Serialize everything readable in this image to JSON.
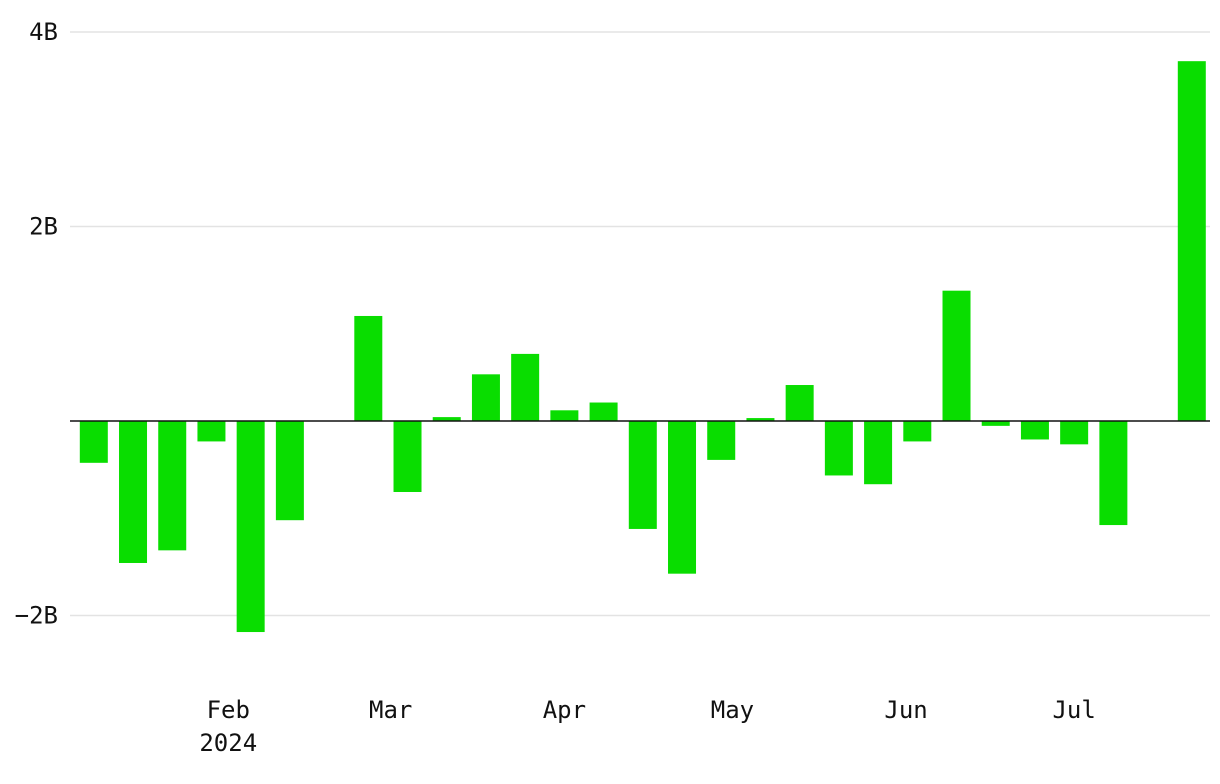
{
  "chart_data": {
    "type": "bar",
    "title": "",
    "xlabel": "",
    "ylabel": "",
    "ylim": [
      -2.6,
      4.1
    ],
    "y_unit": "billions",
    "y_ticks": [
      {
        "value": 4,
        "label": "4B"
      },
      {
        "value": 2,
        "label": "2B"
      },
      {
        "value": -2,
        "label": "−2B"
      }
    ],
    "x_ticks": [
      {
        "label": "Feb",
        "sublabel": "2024",
        "date": "2024-02-01"
      },
      {
        "label": "Mar",
        "sublabel": "",
        "date": "2024-03-01"
      },
      {
        "label": "Apr",
        "sublabel": "",
        "date": "2024-04-01"
      },
      {
        "label": "May",
        "sublabel": "",
        "date": "2024-05-01"
      },
      {
        "label": "Jun",
        "sublabel": "",
        "date": "2024-06-01"
      },
      {
        "label": "Jul",
        "sublabel": "",
        "date": "2024-07-01"
      }
    ],
    "x_range": [
      "2024-01-05",
      "2024-07-24"
    ],
    "bar_color": "#09dd00",
    "grid": true,
    "series": [
      {
        "x": [
          "2024-01-08",
          "2024-01-15",
          "2024-01-22",
          "2024-01-29",
          "2024-02-05",
          "2024-02-12",
          "2024-02-19",
          "2024-02-26",
          "2024-03-04",
          "2024-03-11",
          "2024-03-18",
          "2024-03-25",
          "2024-04-01",
          "2024-04-08",
          "2024-04-15",
          "2024-04-22",
          "2024-04-29",
          "2024-05-06",
          "2024-05-13",
          "2024-05-20",
          "2024-05-27",
          "2024-06-03",
          "2024-06-10",
          "2024-06-17",
          "2024-06-24",
          "2024-07-01",
          "2024-07-08",
          "2024-07-15",
          "2024-07-22"
        ],
        "values": [
          -0.43,
          -1.46,
          -1.33,
          -0.21,
          -2.17,
          -1.02,
          0,
          1.08,
          -0.73,
          0.04,
          0.48,
          0.69,
          0.11,
          0.19,
          -1.11,
          -1.57,
          -0.4,
          0.03,
          0.37,
          -0.56,
          -0.65,
          -0.21,
          1.34,
          -0.05,
          -0.19,
          -0.24,
          -1.07,
          0,
          3.7
        ]
      }
    ]
  }
}
